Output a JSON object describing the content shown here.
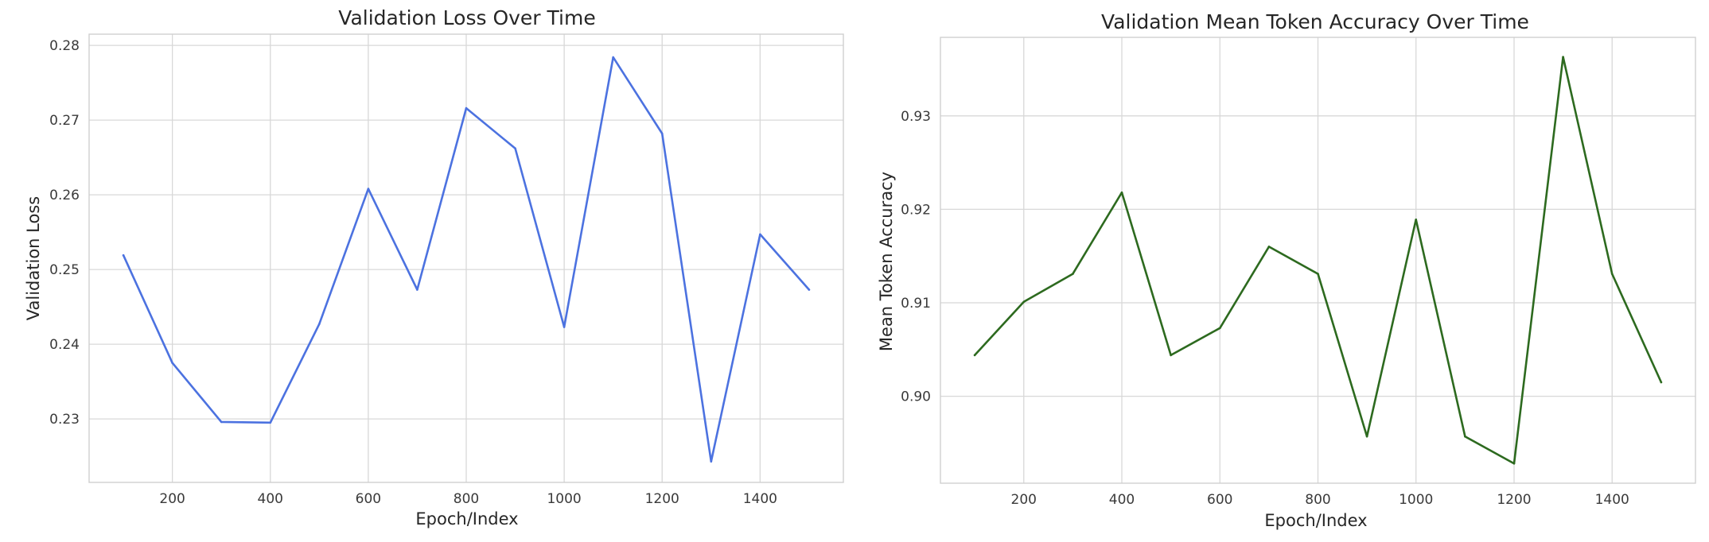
{
  "chart_data": [
    {
      "type": "line",
      "title": "Validation Loss Over Time",
      "xlabel": "Epoch/Index",
      "ylabel": "Validation Loss",
      "x": [
        100,
        200,
        300,
        400,
        500,
        600,
        700,
        800,
        900,
        1000,
        1100,
        1200,
        1300,
        1400,
        1500
      ],
      "series": [
        {
          "values": [
            0.2519,
            0.2375,
            0.2296,
            0.2295,
            0.2427,
            0.2608,
            0.2473,
            0.2716,
            0.2662,
            0.2423,
            0.2784,
            0.2682,
            0.2243,
            0.2547,
            0.2473
          ],
          "color": "#4c72e0"
        }
      ],
      "xlim": [
        30,
        1570
      ],
      "ylim": [
        0.2215,
        0.2815
      ],
      "xticks": [
        200,
        400,
        600,
        800,
        1000,
        1200,
        1400
      ],
      "xtick_labels": [
        "200",
        "400",
        "600",
        "800",
        "1000",
        "1200",
        "1400"
      ],
      "yticks": [
        0.23,
        0.24,
        0.25,
        0.26,
        0.27,
        0.28
      ],
      "ytick_labels": [
        "0.23",
        "0.24",
        "0.25",
        "0.26",
        "0.27",
        "0.28"
      ],
      "grid": true,
      "legend": "none"
    },
    {
      "type": "line",
      "title": "Validation Mean Token Accuracy Over Time",
      "xlabel": "Epoch/Index",
      "ylabel": "Mean Token Accuracy",
      "x": [
        100,
        200,
        300,
        400,
        500,
        600,
        700,
        800,
        900,
        1000,
        1100,
        1200,
        1300,
        1400,
        1500
      ],
      "series": [
        {
          "values": [
            0.9044,
            0.9101,
            0.9131,
            0.9218,
            0.9044,
            0.9073,
            0.916,
            0.9131,
            0.8957,
            0.9189,
            0.8957,
            0.8928,
            0.9363,
            0.9131,
            0.9015
          ],
          "color": "#2d6a1f"
        }
      ],
      "xlim": [
        30,
        1570
      ],
      "ylim": [
        0.8907,
        0.9384
      ],
      "xticks": [
        200,
        400,
        600,
        800,
        1000,
        1200,
        1400
      ],
      "xtick_labels": [
        "200",
        "400",
        "600",
        "800",
        "1000",
        "1200",
        "1400"
      ],
      "yticks": [
        0.9,
        0.91,
        0.92,
        0.93
      ],
      "ytick_labels": [
        "0.90",
        "0.91",
        "0.92",
        "0.93"
      ],
      "grid": true,
      "legend": "none"
    }
  ]
}
